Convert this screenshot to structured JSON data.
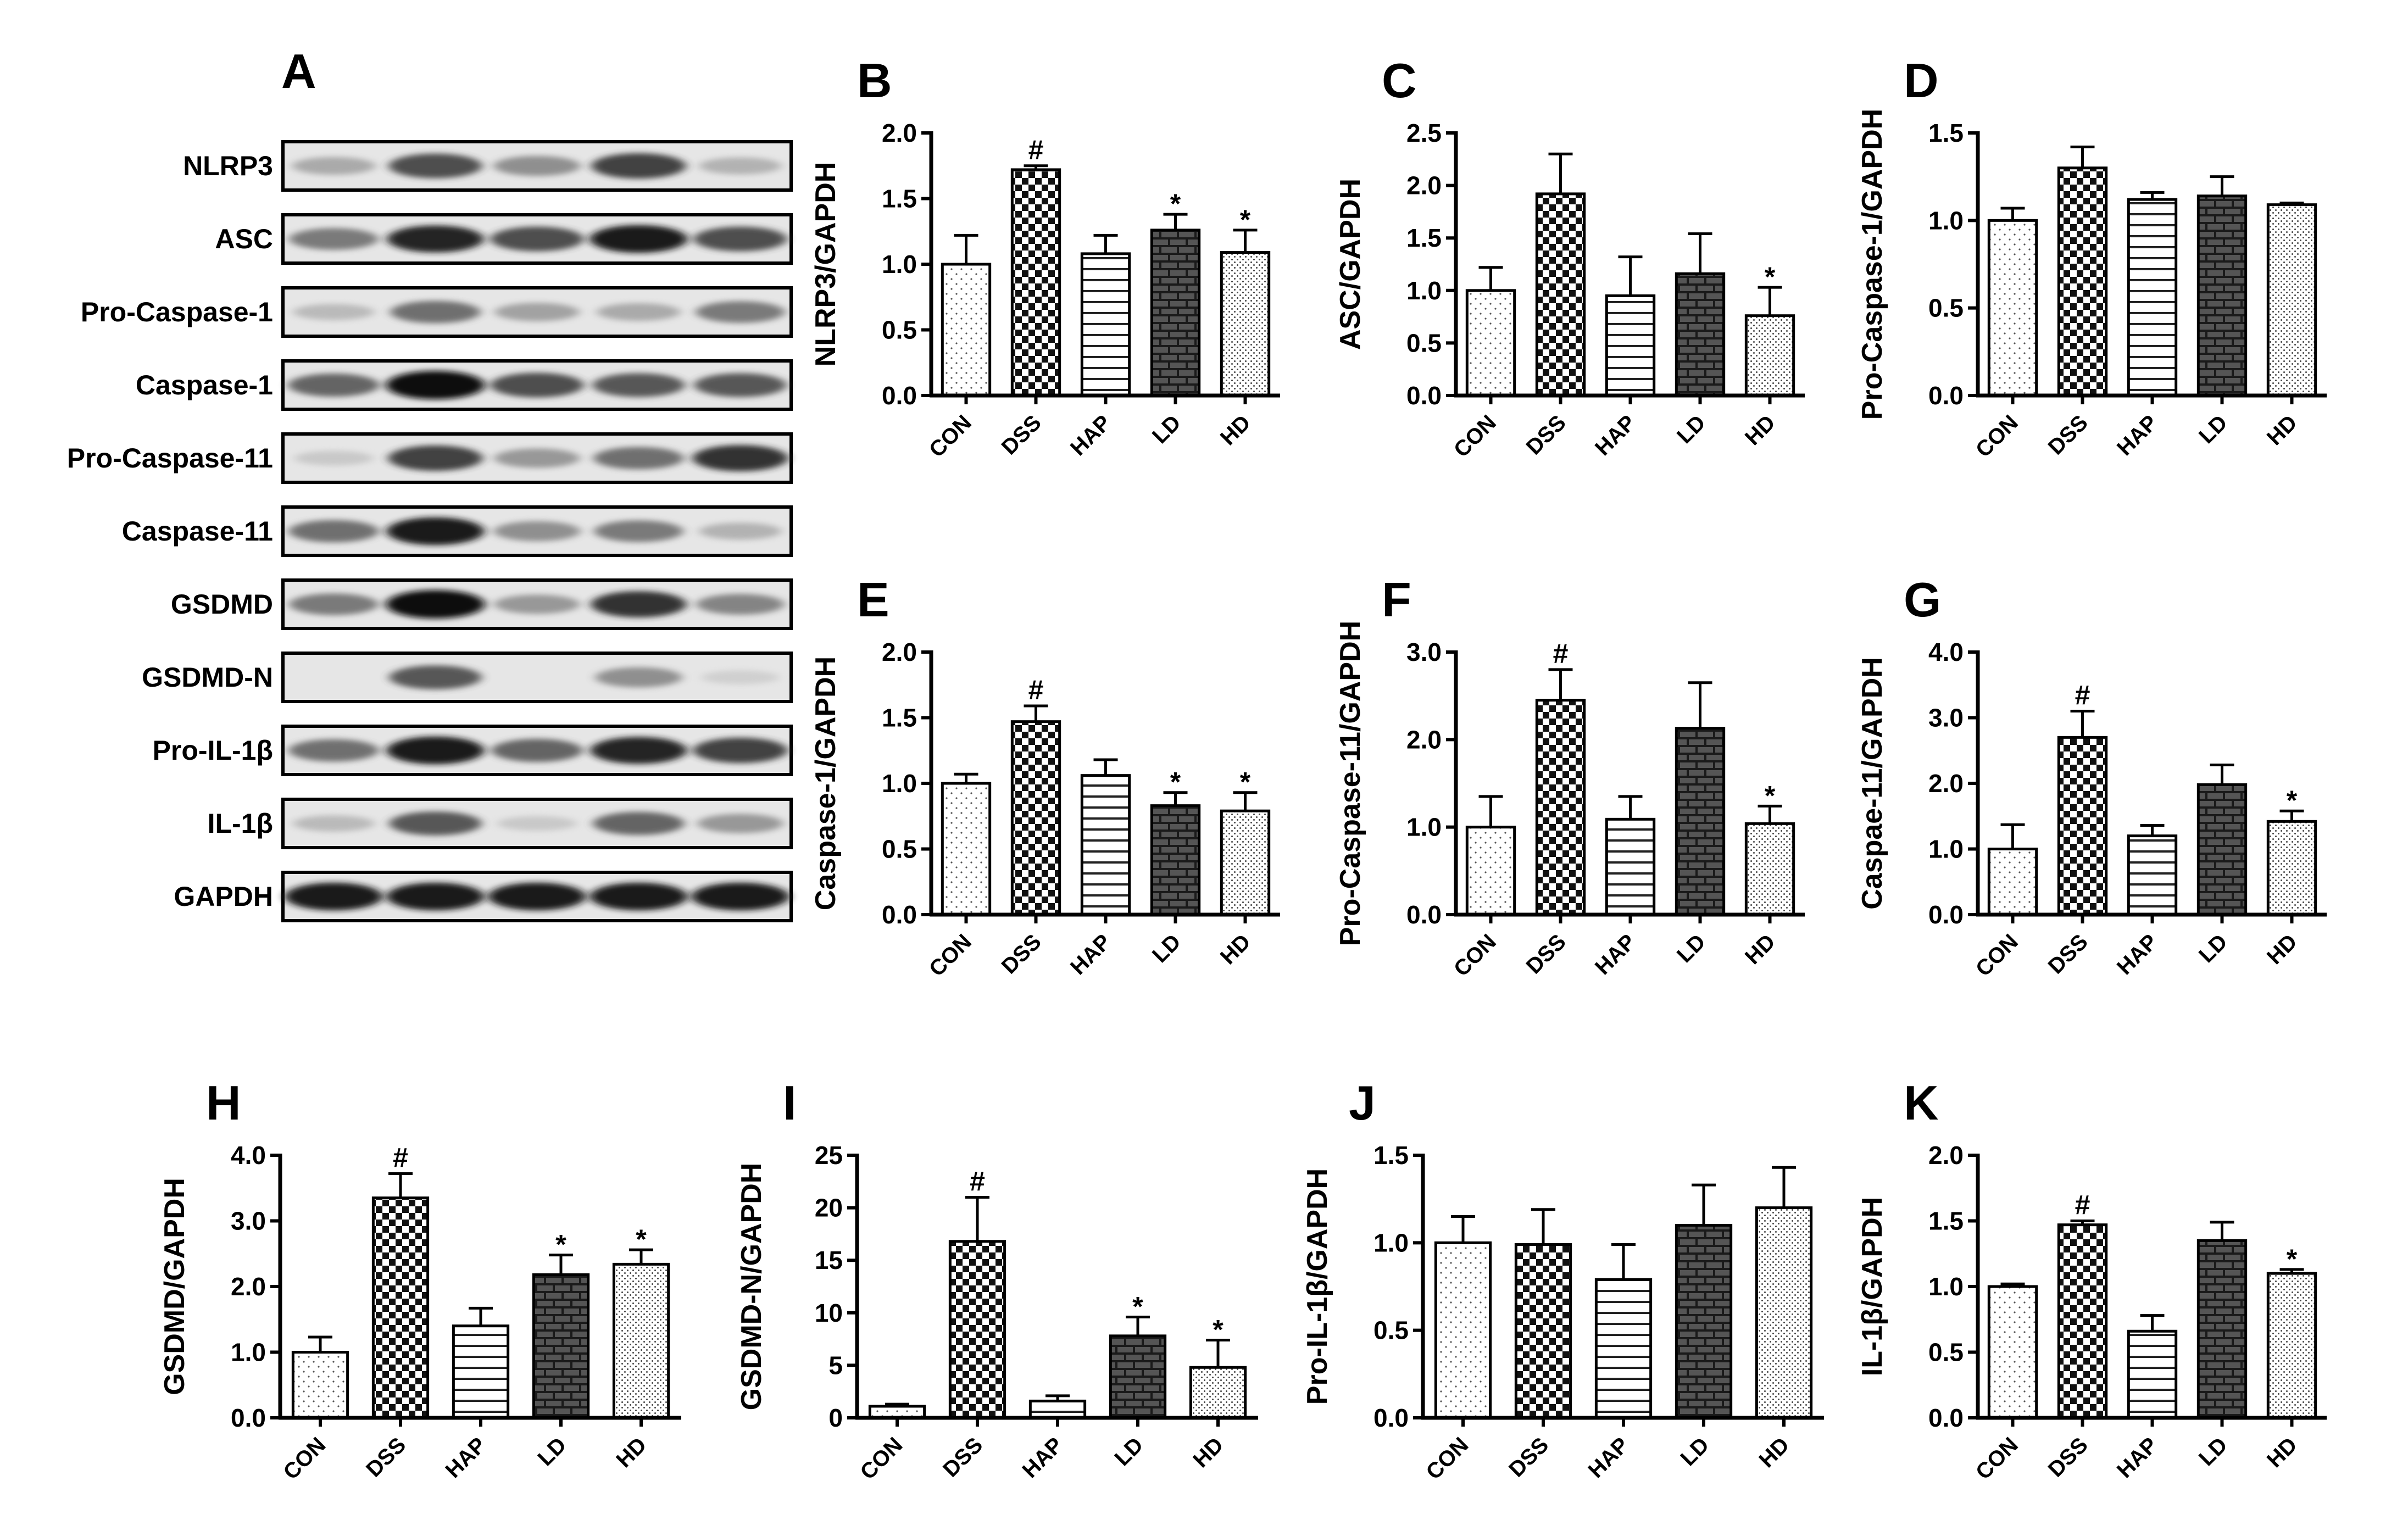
{
  "blot": {
    "label": "A",
    "rows": [
      {
        "name": "NLRP3",
        "intensity": [
          0.3,
          0.75,
          0.45,
          0.8,
          0.25
        ]
      },
      {
        "name": "ASC",
        "intensity": [
          0.55,
          0.9,
          0.75,
          0.95,
          0.75
        ]
      },
      {
        "name": "Pro-Caspase-1",
        "intensity": [
          0.2,
          0.6,
          0.35,
          0.3,
          0.55
        ]
      },
      {
        "name": "Caspase-1",
        "intensity": [
          0.65,
          1.0,
          0.75,
          0.7,
          0.7
        ]
      },
      {
        "name": "Pro-Caspase-11",
        "intensity": [
          0.1,
          0.8,
          0.4,
          0.6,
          0.85
        ]
      },
      {
        "name": "Caspase-11",
        "intensity": [
          0.6,
          0.95,
          0.45,
          0.55,
          0.25
        ]
      },
      {
        "name": "GSDMD",
        "intensity": [
          0.55,
          1.0,
          0.4,
          0.85,
          0.5
        ]
      },
      {
        "name": "GSDMD-N",
        "intensity": [
          0.0,
          0.7,
          0.0,
          0.45,
          0.05
        ]
      },
      {
        "name": "Pro-IL-1β",
        "intensity": [
          0.6,
          0.95,
          0.65,
          0.9,
          0.8
        ]
      },
      {
        "name": "IL-1β",
        "intensity": [
          0.2,
          0.7,
          0.1,
          0.65,
          0.4
        ]
      },
      {
        "name": "GAPDH",
        "intensity": [
          0.95,
          0.95,
          0.95,
          0.95,
          0.95
        ]
      }
    ]
  },
  "chart_data": [
    {
      "panel": "B",
      "type": "bar",
      "ylabel": "NLRP3/GAPDH",
      "ylim": [
        0,
        2.0
      ],
      "yticks": [
        "0.0",
        "0.5",
        "1.0",
        "1.5",
        "2.0"
      ],
      "categories": [
        "CON",
        "DSS",
        "HAP",
        "LD",
        "HD"
      ],
      "values": [
        1.0,
        1.72,
        1.08,
        1.26,
        1.09
      ],
      "errors": [
        0.22,
        0.03,
        0.14,
        0.12,
        0.17
      ],
      "annotations": [
        "",
        "#",
        "",
        "*",
        "*"
      ]
    },
    {
      "panel": "C",
      "type": "bar",
      "ylabel": "ASC/GAPDH",
      "ylim": [
        0,
        2.5
      ],
      "yticks": [
        "0.0",
        "0.5",
        "1.0",
        "1.5",
        "2.0",
        "2.5"
      ],
      "categories": [
        "CON",
        "DSS",
        "HAP",
        "LD",
        "HD"
      ],
      "values": [
        1.0,
        1.92,
        0.95,
        1.16,
        0.76
      ],
      "errors": [
        0.22,
        0.38,
        0.37,
        0.38,
        0.27
      ],
      "annotations": [
        "",
        "",
        "",
        "",
        "*"
      ]
    },
    {
      "panel": "D",
      "type": "bar",
      "ylabel": "Pro-Caspase-1/GAPDH",
      "ylim": [
        0,
        1.5
      ],
      "yticks": [
        "0.0",
        "0.5",
        "1.0",
        "1.5"
      ],
      "categories": [
        "CON",
        "DSS",
        "HAP",
        "LD",
        "HD"
      ],
      "values": [
        1.0,
        1.3,
        1.12,
        1.14,
        1.09
      ],
      "errors": [
        0.07,
        0.12,
        0.04,
        0.11,
        0.01
      ],
      "annotations": [
        "",
        "",
        "",
        "",
        ""
      ]
    },
    {
      "panel": "E",
      "type": "bar",
      "ylabel": "Caspase-1/GAPDH",
      "ylim": [
        0,
        2.0
      ],
      "yticks": [
        "0.0",
        "0.5",
        "1.0",
        "1.5",
        "2.0"
      ],
      "categories": [
        "CON",
        "DSS",
        "HAP",
        "LD",
        "HD"
      ],
      "values": [
        1.0,
        1.47,
        1.06,
        0.83,
        0.79
      ],
      "errors": [
        0.07,
        0.12,
        0.12,
        0.1,
        0.14
      ],
      "annotations": [
        "",
        "#",
        "",
        "*",
        "*"
      ]
    },
    {
      "panel": "F",
      "type": "bar",
      "ylabel": "Pro-Caspase-11/GAPDH",
      "ylim": [
        0,
        3.0
      ],
      "yticks": [
        "0.0",
        "1.0",
        "2.0",
        "3.0"
      ],
      "categories": [
        "CON",
        "DSS",
        "HAP",
        "LD",
        "HD"
      ],
      "values": [
        1.0,
        2.45,
        1.09,
        2.13,
        1.04
      ],
      "errors": [
        0.35,
        0.35,
        0.26,
        0.52,
        0.2
      ],
      "annotations": [
        "",
        "#",
        "",
        "",
        "*"
      ]
    },
    {
      "panel": "G",
      "type": "bar",
      "ylabel": "Caspae-11/GAPDH",
      "ylim": [
        0,
        4.0
      ],
      "yticks": [
        "0.0",
        "1.0",
        "2.0",
        "3.0",
        "4.0"
      ],
      "categories": [
        "CON",
        "DSS",
        "HAP",
        "LD",
        "HD"
      ],
      "values": [
        1.0,
        2.7,
        1.2,
        1.98,
        1.42
      ],
      "errors": [
        0.37,
        0.4,
        0.16,
        0.3,
        0.16
      ],
      "annotations": [
        "",
        "#",
        "",
        "",
        "*"
      ]
    },
    {
      "panel": "H",
      "type": "bar",
      "ylabel": "GSDMD/GAPDH",
      "ylim": [
        0,
        4.0
      ],
      "yticks": [
        "0.0",
        "1.0",
        "2.0",
        "3.0",
        "4.0"
      ],
      "categories": [
        "CON",
        "DSS",
        "HAP",
        "LD",
        "HD"
      ],
      "values": [
        1.0,
        3.35,
        1.4,
        2.18,
        2.34
      ],
      "errors": [
        0.23,
        0.37,
        0.27,
        0.3,
        0.22
      ],
      "annotations": [
        "",
        "#",
        "",
        "*",
        "*"
      ]
    },
    {
      "panel": "I",
      "type": "bar",
      "ylabel": "GSDMD-N/GAPDH",
      "ylim": [
        0,
        25
      ],
      "yticks": [
        "0",
        "5",
        "10",
        "15",
        "20",
        "25"
      ],
      "categories": [
        "CON",
        "DSS",
        "HAP",
        "LD",
        "HD"
      ],
      "values": [
        1.1,
        16.8,
        1.6,
        7.8,
        4.8
      ],
      "errors": [
        0.2,
        4.2,
        0.5,
        1.8,
        2.6
      ],
      "annotations": [
        "",
        "#",
        "",
        "*",
        "*"
      ]
    },
    {
      "panel": "J",
      "type": "bar",
      "ylabel": "Pro-IL-1β/GAPDH",
      "ylim": [
        0,
        1.5
      ],
      "yticks": [
        "0.0",
        "0.5",
        "1.0",
        "1.5"
      ],
      "categories": [
        "CON",
        "DSS",
        "HAP",
        "LD",
        "HD"
      ],
      "values": [
        1.0,
        0.99,
        0.79,
        1.1,
        1.2
      ],
      "errors": [
        0.15,
        0.2,
        0.2,
        0.23,
        0.23
      ],
      "annotations": [
        "",
        "",
        "",
        "",
        ""
      ]
    },
    {
      "panel": "K",
      "type": "bar",
      "ylabel": "IL-1β/GAPDH",
      "ylim": [
        0,
        2.0
      ],
      "yticks": [
        "0.0",
        "0.5",
        "1.0",
        "1.5",
        "2.0"
      ],
      "categories": [
        "CON",
        "DSS",
        "HAP",
        "LD",
        "HD"
      ],
      "values": [
        1.0,
        1.47,
        0.66,
        1.35,
        1.1
      ],
      "errors": [
        0.02,
        0.03,
        0.12,
        0.14,
        0.03
      ],
      "annotations": [
        "",
        "#",
        "",
        "",
        "*"
      ]
    }
  ],
  "patterns": {
    "CON": "dots",
    "DSS": "check",
    "HAP": "hlines",
    "LD": "brick",
    "HD": "finedots"
  }
}
